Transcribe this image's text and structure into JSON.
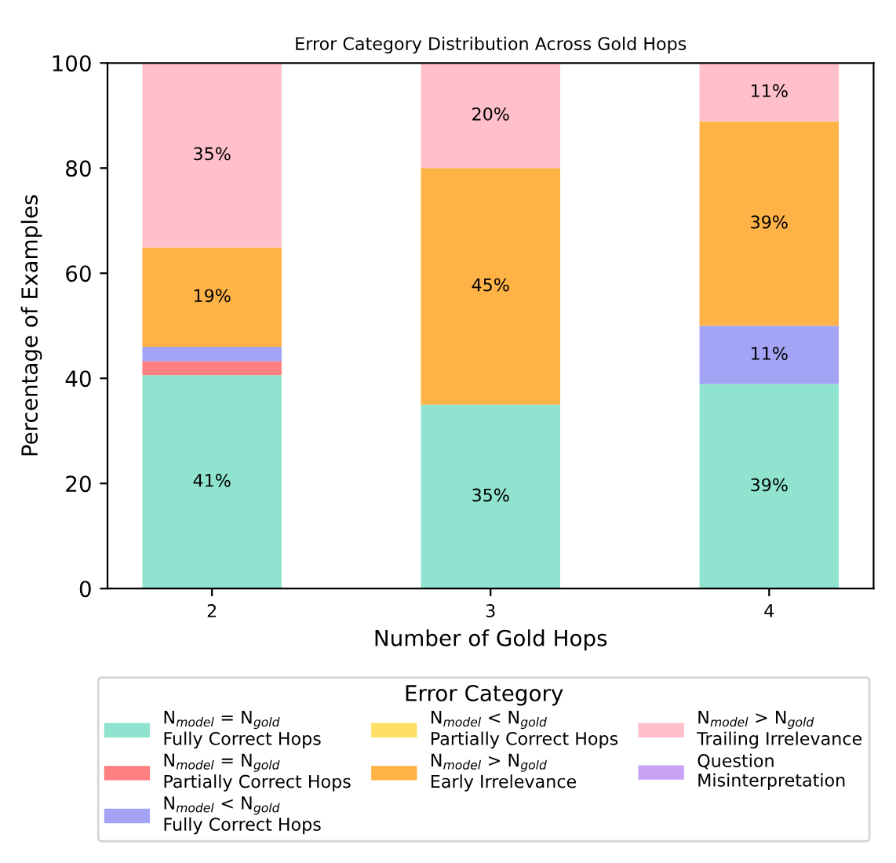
{
  "chart_data": {
    "type": "bar",
    "title": "Error Category Distribution Across Gold Hops",
    "xlabel": "Number of Gold Hops",
    "ylabel": "Percentage of Examples",
    "legend_title": "Error Category",
    "categories": [
      "2",
      "3",
      "4"
    ],
    "stacked": true,
    "ylim": [
      0,
      100
    ],
    "yticks": [
      0,
      20,
      40,
      60,
      80,
      100
    ],
    "grid": false,
    "legend": "bottom",
    "series": [
      {
        "name": "N$_{model}$ = N$_{gold}$\nFully Correct Hops",
        "color": "#8fe3cf",
        "values": [
          40.6,
          35,
          38.9
        ],
        "value_labels": [
          "41%",
          "35%",
          "39%"
        ]
      },
      {
        "name": "N$_{model}$ = N$_{gold}$\nPartially Correct Hops",
        "color": "#ff8080",
        "values": [
          2.7,
          0,
          0
        ],
        "value_labels": [
          null,
          null,
          null
        ]
      },
      {
        "name": "N$_{model}$ < N$_{gold}$\nFully Correct Hops",
        "color": "#a4a4f7",
        "values": [
          2.7,
          0,
          11.1
        ],
        "value_labels": [
          null,
          null,
          "11%"
        ]
      },
      {
        "name": "N$_{model}$ < N$_{gold}$\nPartially Correct Hops",
        "color": "#ffe066",
        "values": [
          0,
          0,
          0
        ],
        "value_labels": [
          null,
          null,
          null
        ]
      },
      {
        "name": "N$_{model}$ > N$_{gold}$\nEarly Irrelevance",
        "color": "#ffb347",
        "values": [
          18.9,
          45,
          38.9
        ],
        "value_labels": [
          "19%",
          "45%",
          "39%"
        ]
      },
      {
        "name": "N$_{model}$ > N$_{gold}$\nTrailing Irrelevance",
        "color": "#ffc0cb",
        "values": [
          35.1,
          20,
          11.1
        ],
        "value_labels": [
          "35%",
          "20%",
          "11%"
        ]
      },
      {
        "name": "Question\nMisinterpretation",
        "color": "#c8a2f5",
        "values": [
          0,
          0,
          0
        ],
        "value_labels": [
          null,
          null,
          null
        ]
      }
    ]
  }
}
